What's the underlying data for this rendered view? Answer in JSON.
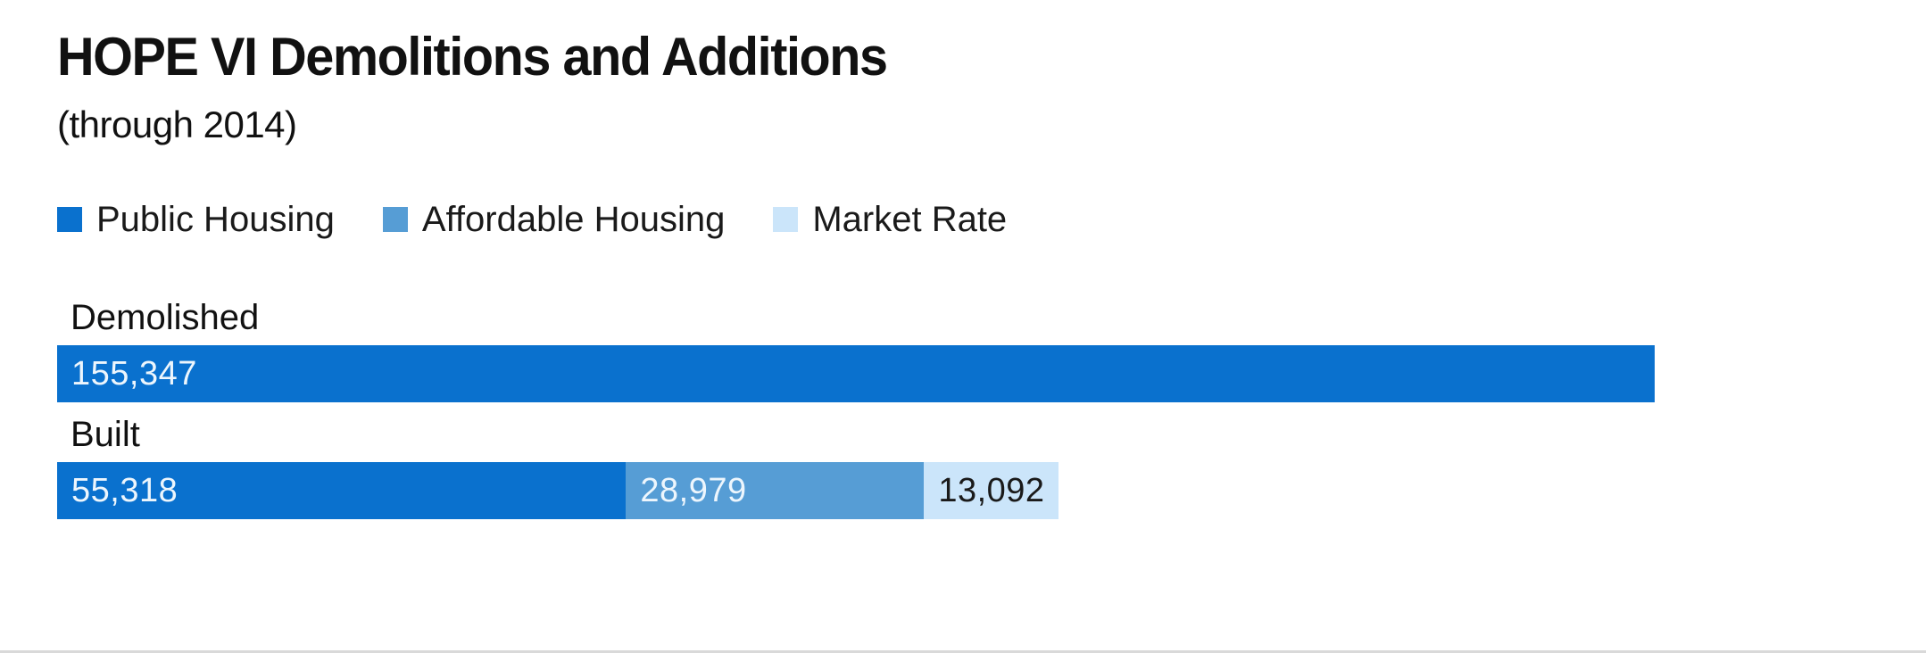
{
  "title": "HOPE VI Demolitions and Additions",
  "subtitle": "(through 2014)",
  "palette": {
    "public_housing": "#0a71ce",
    "affordable_housing": "#569dd5",
    "market_rate": "#cbe5fa",
    "text_dark": "#1a1a1a",
    "text_on_blue": "#edf6fd"
  },
  "legend": [
    {
      "label": "Public Housing",
      "color": "#0a71ce"
    },
    {
      "label": "Affordable Housing",
      "color": "#569dd5"
    },
    {
      "label": "Market Rate",
      "color": "#cbe5fa"
    }
  ],
  "chart_data": {
    "type": "bar",
    "orientation": "horizontal",
    "stacked": true,
    "title": "HOPE VI Demolitions and Additions",
    "subtitle": "(through 2014)",
    "legend_position": "top",
    "grid": false,
    "axis_labels_shown": false,
    "max_value": 155347,
    "categories": [
      "Demolished",
      "Built"
    ],
    "series": [
      {
        "name": "Public Housing",
        "color": "#0a71ce",
        "values": [
          155347,
          55318
        ]
      },
      {
        "name": "Affordable Housing",
        "color": "#569dd5",
        "values": [
          0,
          28979
        ]
      },
      {
        "name": "Market Rate",
        "color": "#cbe5fa",
        "values": [
          0,
          13092
        ]
      }
    ],
    "rows": [
      {
        "label": "Demolished",
        "segments": [
          {
            "series": "Public Housing",
            "value": 155347,
            "display": "155,347",
            "color": "#0a71ce",
            "text_color": "#edf6fd"
          }
        ]
      },
      {
        "label": "Built",
        "segments": [
          {
            "series": "Public Housing",
            "value": 55318,
            "display": "55,318",
            "color": "#0a71ce",
            "text_color": "#edf6fd"
          },
          {
            "series": "Affordable Housing",
            "value": 28979,
            "display": "28,979",
            "color": "#569dd5",
            "text_color": "#edf6fd"
          },
          {
            "series": "Market Rate",
            "value": 13092,
            "display": "13,092",
            "color": "#cbe5fa",
            "text_color": "#1a1a1a"
          }
        ]
      }
    ]
  }
}
